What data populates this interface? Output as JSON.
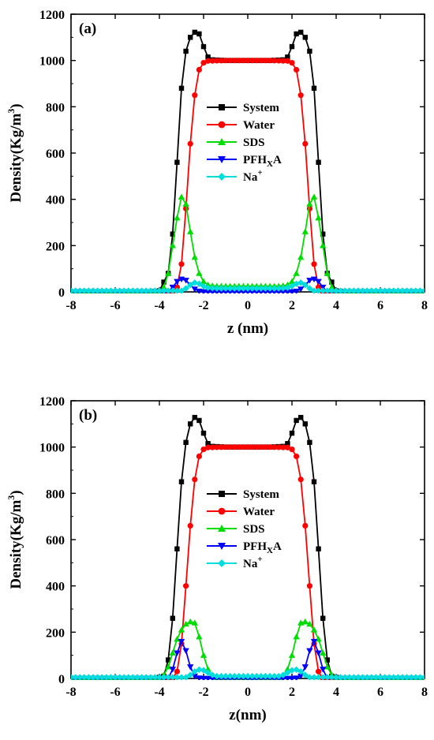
{
  "chart_data": [
    {
      "type": "line",
      "panel_label": "(a)",
      "xlabel": "z (nm)",
      "ylabel": "Density(Kg/m",
      "ylabel_sup": "3",
      "ylabel_end": ")",
      "xlim": [
        -8,
        8
      ],
      "ylim": [
        0,
        1200
      ],
      "xticks": [
        -8,
        -6,
        -4,
        -2,
        0,
        2,
        4,
        6,
        8
      ],
      "yticks": [
        0,
        200,
        400,
        600,
        800,
        1000,
        1200
      ],
      "legend_position": "center",
      "series": [
        {
          "name": "System",
          "sub": "",
          "sup": "",
          "color": "#000000",
          "marker": "square",
          "points": [
            [
              -8,
              0
            ],
            [
              -4.4,
              0
            ],
            [
              -4.0,
              5
            ],
            [
              -3.6,
              80
            ],
            [
              -3.4,
              250
            ],
            [
              -3.2,
              560
            ],
            [
              -3.0,
              880
            ],
            [
              -2.8,
              1040
            ],
            [
              -2.6,
              1100
            ],
            [
              -2.4,
              1122
            ],
            [
              -2.2,
              1115
            ],
            [
              -2.0,
              1060
            ],
            [
              -1.8,
              1015
            ],
            [
              -1.6,
              1003
            ],
            [
              -1.0,
              1000
            ],
            [
              0,
              1000
            ],
            [
              1.0,
              1000
            ],
            [
              1.6,
              1003
            ],
            [
              1.8,
              1015
            ],
            [
              2.0,
              1060
            ],
            [
              2.2,
              1115
            ],
            [
              2.4,
              1122
            ],
            [
              2.6,
              1100
            ],
            [
              2.8,
              1040
            ],
            [
              3.0,
              880
            ],
            [
              3.2,
              560
            ],
            [
              3.4,
              250
            ],
            [
              3.6,
              80
            ],
            [
              4.0,
              5
            ],
            [
              4.4,
              0
            ],
            [
              8,
              0
            ]
          ]
        },
        {
          "name": "Water",
          "sub": "",
          "sup": "",
          "color": "#ff0000",
          "marker": "circle",
          "points": [
            [
              -8,
              0
            ],
            [
              -3.4,
              0
            ],
            [
              -3.2,
              20
            ],
            [
              -3.0,
              120
            ],
            [
              -2.8,
              360
            ],
            [
              -2.6,
              640
            ],
            [
              -2.4,
              850
            ],
            [
              -2.2,
              960
            ],
            [
              -2.0,
              990
            ],
            [
              -1.8,
              998
            ],
            [
              -1.0,
              1000
            ],
            [
              0,
              1000
            ],
            [
              1.0,
              1000
            ],
            [
              1.8,
              998
            ],
            [
              2.0,
              990
            ],
            [
              2.2,
              960
            ],
            [
              2.4,
              850
            ],
            [
              2.6,
              640
            ],
            [
              2.8,
              360
            ],
            [
              3.0,
              120
            ],
            [
              3.2,
              20
            ],
            [
              3.4,
              0
            ],
            [
              8,
              0
            ]
          ]
        },
        {
          "name": "SDS",
          "sub": "",
          "sup": "",
          "color": "#00dd00",
          "marker": "triangle-up",
          "points": [
            [
              -8,
              0
            ],
            [
              -4.0,
              0
            ],
            [
              -3.8,
              20
            ],
            [
              -3.6,
              80
            ],
            [
              -3.4,
              200
            ],
            [
              -3.2,
              320
            ],
            [
              -3.0,
              410
            ],
            [
              -2.9,
              420
            ],
            [
              -2.8,
              380
            ],
            [
              -2.6,
              260
            ],
            [
              -2.4,
              150
            ],
            [
              -2.2,
              80
            ],
            [
              -2.0,
              45
            ],
            [
              -1.8,
              30
            ],
            [
              -1.5,
              25
            ],
            [
              0,
              25
            ],
            [
              1.5,
              25
            ],
            [
              1.8,
              30
            ],
            [
              2.0,
              45
            ],
            [
              2.2,
              80
            ],
            [
              2.4,
              150
            ],
            [
              2.6,
              260
            ],
            [
              2.8,
              380
            ],
            [
              2.9,
              420
            ],
            [
              3.0,
              410
            ],
            [
              3.2,
              320
            ],
            [
              3.4,
              200
            ],
            [
              3.6,
              80
            ],
            [
              3.8,
              20
            ],
            [
              4.0,
              0
            ],
            [
              8,
              0
            ]
          ]
        },
        {
          "name": "PFH",
          "sub": "X",
          "sup": "",
          "suffix": "A",
          "color": "#0000ff",
          "marker": "triangle-down",
          "points": [
            [
              -8,
              0
            ],
            [
              -3.6,
              0
            ],
            [
              -3.4,
              20
            ],
            [
              -3.2,
              45
            ],
            [
              -3.0,
              55
            ],
            [
              -2.8,
              50
            ],
            [
              -2.6,
              30
            ],
            [
              -2.4,
              12
            ],
            [
              -2.2,
              3
            ],
            [
              -2.0,
              0
            ],
            [
              2.0,
              0
            ],
            [
              2.2,
              3
            ],
            [
              2.4,
              12
            ],
            [
              2.6,
              30
            ],
            [
              2.8,
              50
            ],
            [
              3.0,
              55
            ],
            [
              3.2,
              45
            ],
            [
              3.4,
              20
            ],
            [
              3.6,
              0
            ],
            [
              8,
              0
            ]
          ]
        },
        {
          "name": "Na",
          "sub": "",
          "sup": "+",
          "suffix": "",
          "color": "#00dddd",
          "marker": "diamond",
          "points": [
            [
              -8,
              5
            ],
            [
              -3.0,
              5
            ],
            [
              -2.8,
              15
            ],
            [
              -2.6,
              30
            ],
            [
              -2.4,
              40
            ],
            [
              -2.2,
              35
            ],
            [
              -2.0,
              25
            ],
            [
              -1.8,
              18
            ],
            [
              -1.5,
              15
            ],
            [
              0,
              15
            ],
            [
              1.5,
              15
            ],
            [
              1.8,
              18
            ],
            [
              2.0,
              25
            ],
            [
              2.2,
              35
            ],
            [
              2.4,
              40
            ],
            [
              2.6,
              30
            ],
            [
              2.8,
              15
            ],
            [
              3.0,
              5
            ],
            [
              8,
              5
            ]
          ]
        }
      ]
    },
    {
      "type": "line",
      "panel_label": "(b)",
      "xlabel": "z(nm)",
      "ylabel": "Density(Kg/m",
      "ylabel_sup": "3",
      "ylabel_end": ")",
      "xlim": [
        -8,
        8
      ],
      "ylim": [
        0,
        1200
      ],
      "xticks": [
        -8,
        -6,
        -4,
        -2,
        0,
        2,
        4,
        6,
        8
      ],
      "yticks": [
        0,
        200,
        400,
        600,
        800,
        1000,
        1200
      ],
      "legend_position": "center",
      "series": [
        {
          "name": "System",
          "sub": "",
          "sup": "",
          "color": "#000000",
          "marker": "square",
          "points": [
            [
              -8,
              0
            ],
            [
              -4.2,
              0
            ],
            [
              -3.8,
              10
            ],
            [
              -3.6,
              80
            ],
            [
              -3.4,
              260
            ],
            [
              -3.2,
              560
            ],
            [
              -3.0,
              850
            ],
            [
              -2.8,
              1020
            ],
            [
              -2.6,
              1100
            ],
            [
              -2.4,
              1128
            ],
            [
              -2.2,
              1115
            ],
            [
              -2.0,
              1060
            ],
            [
              -1.8,
              1015
            ],
            [
              -1.6,
              1003
            ],
            [
              -1.0,
              1000
            ],
            [
              0,
              1000
            ],
            [
              1.0,
              1000
            ],
            [
              1.6,
              1003
            ],
            [
              1.8,
              1015
            ],
            [
              2.0,
              1060
            ],
            [
              2.2,
              1115
            ],
            [
              2.4,
              1128
            ],
            [
              2.6,
              1100
            ],
            [
              2.8,
              1020
            ],
            [
              3.0,
              850
            ],
            [
              3.2,
              560
            ],
            [
              3.4,
              260
            ],
            [
              3.6,
              80
            ],
            [
              3.8,
              10
            ],
            [
              4.2,
              0
            ],
            [
              8,
              0
            ]
          ]
        },
        {
          "name": "Water",
          "sub": "",
          "sup": "",
          "color": "#ff0000",
          "marker": "circle",
          "points": [
            [
              -8,
              0
            ],
            [
              -3.4,
              0
            ],
            [
              -3.2,
              30
            ],
            [
              -3.0,
              150
            ],
            [
              -2.8,
              400
            ],
            [
              -2.6,
              660
            ],
            [
              -2.4,
              860
            ],
            [
              -2.2,
              960
            ],
            [
              -2.0,
              990
            ],
            [
              -1.8,
              998
            ],
            [
              -1.0,
              1000
            ],
            [
              0,
              1000
            ],
            [
              1.0,
              1000
            ],
            [
              1.8,
              998
            ],
            [
              2.0,
              990
            ],
            [
              2.2,
              960
            ],
            [
              2.4,
              860
            ],
            [
              2.6,
              660
            ],
            [
              2.8,
              400
            ],
            [
              3.0,
              150
            ],
            [
              3.2,
              30
            ],
            [
              3.4,
              0
            ],
            [
              8,
              0
            ]
          ]
        },
        {
          "name": "SDS",
          "sub": "",
          "sup": "",
          "color": "#00dd00",
          "marker": "triangle-up",
          "points": [
            [
              -8,
              0
            ],
            [
              -4.0,
              0
            ],
            [
              -3.8,
              15
            ],
            [
              -3.6,
              50
            ],
            [
              -3.4,
              110
            ],
            [
              -3.2,
              170
            ],
            [
              -3.0,
              210
            ],
            [
              -2.8,
              235
            ],
            [
              -2.6,
              245
            ],
            [
              -2.4,
              240
            ],
            [
              -2.2,
              180
            ],
            [
              -2.0,
              100
            ],
            [
              -1.8,
              40
            ],
            [
              -1.6,
              10
            ],
            [
              -1.4,
              3
            ],
            [
              0,
              3
            ],
            [
              1.4,
              3
            ],
            [
              1.6,
              10
            ],
            [
              1.8,
              40
            ],
            [
              2.0,
              100
            ],
            [
              2.2,
              180
            ],
            [
              2.4,
              240
            ],
            [
              2.6,
              245
            ],
            [
              2.8,
              235
            ],
            [
              3.0,
              210
            ],
            [
              3.2,
              170
            ],
            [
              3.4,
              110
            ],
            [
              3.6,
              50
            ],
            [
              3.8,
              15
            ],
            [
              4.0,
              0
            ],
            [
              8,
              0
            ]
          ]
        },
        {
          "name": "PFH",
          "sub": "X",
          "sup": "",
          "suffix": "A",
          "color": "#0000ff",
          "marker": "triangle-down",
          "points": [
            [
              -8,
              0
            ],
            [
              -3.6,
              0
            ],
            [
              -3.4,
              40
            ],
            [
              -3.2,
              110
            ],
            [
              -3.0,
              160
            ],
            [
              -2.9,
              155
            ],
            [
              -2.8,
              120
            ],
            [
              -2.6,
              50
            ],
            [
              -2.4,
              10
            ],
            [
              -2.2,
              2
            ],
            [
              -2.0,
              0
            ],
            [
              2.0,
              0
            ],
            [
              2.2,
              2
            ],
            [
              2.4,
              10
            ],
            [
              2.6,
              50
            ],
            [
              2.8,
              120
            ],
            [
              2.9,
              155
            ],
            [
              3.0,
              160
            ],
            [
              3.2,
              110
            ],
            [
              3.4,
              40
            ],
            [
              3.6,
              0
            ],
            [
              8,
              0
            ]
          ]
        },
        {
          "name": "Na",
          "sub": "",
          "sup": "+",
          "suffix": "",
          "color": "#00dddd",
          "marker": "diamond",
          "points": [
            [
              -8,
              5
            ],
            [
              -2.8,
              5
            ],
            [
              -2.6,
              15
            ],
            [
              -2.4,
              30
            ],
            [
              -2.2,
              38
            ],
            [
              -2.0,
              35
            ],
            [
              -1.8,
              25
            ],
            [
              -1.6,
              15
            ],
            [
              -1.4,
              10
            ],
            [
              0,
              10
            ],
            [
              1.4,
              10
            ],
            [
              1.6,
              15
            ],
            [
              1.8,
              25
            ],
            [
              2.0,
              35
            ],
            [
              2.2,
              38
            ],
            [
              2.4,
              30
            ],
            [
              2.6,
              15
            ],
            [
              2.8,
              5
            ],
            [
              8,
              5
            ]
          ]
        }
      ]
    }
  ]
}
